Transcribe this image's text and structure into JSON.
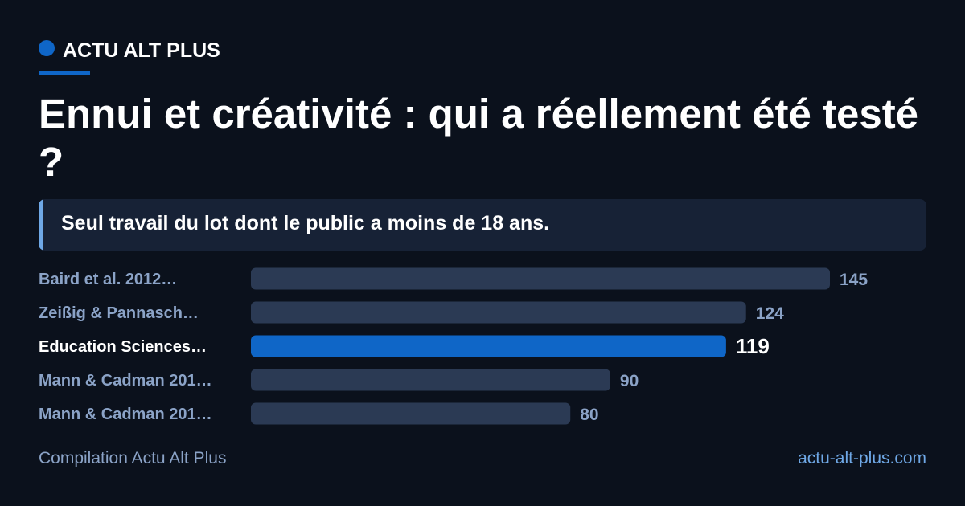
{
  "brand": {
    "name": "ACTU ALT PLUS",
    "accent": "#0f66c7"
  },
  "title": "Ennui et créativité : qui a réellement été testé ?",
  "callout": {
    "text": "Seul travail du lot dont le public a moins de 18 ans."
  },
  "chart_data": {
    "type": "bar",
    "orientation": "horizontal",
    "categories": [
      "Baird et al. 2012…",
      "Zeißig & Pannasch…",
      "Education Sciences…",
      "Mann & Cadman 201…",
      "Mann & Cadman 201…"
    ],
    "values": [
      145,
      124,
      119,
      90,
      80
    ],
    "highlight_index": 2,
    "colors": {
      "bar": "#2b3a54",
      "bar_highlight": "#0f66c7",
      "label": "#8ba3c7",
      "label_highlight": "#ffffff"
    }
  },
  "footer": {
    "source": "Compilation Actu Alt Plus",
    "site": "actu-alt-plus.com"
  }
}
